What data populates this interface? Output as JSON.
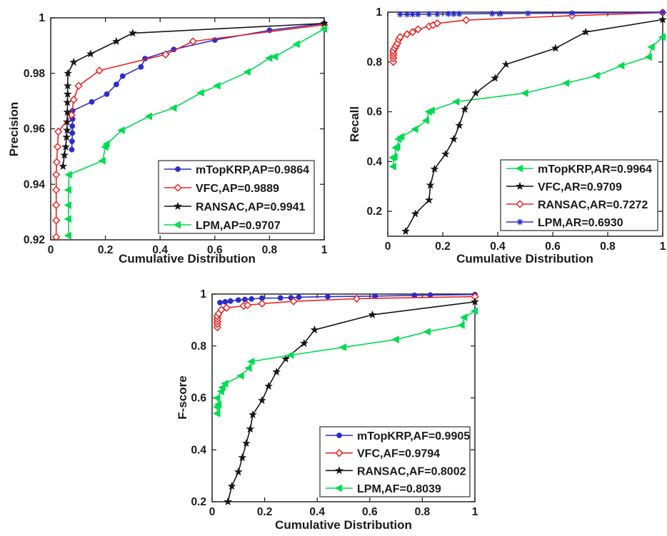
{
  "figure": {
    "background": "#ffffff",
    "palette": {
      "blue": "#2d2dcb",
      "red": "#ee2222",
      "black": "#161616",
      "green": "#00dc50"
    },
    "frame_color": "#262626",
    "text_color": "#1a1a1a",
    "legend_border_color": "#4d4d4d"
  },
  "chart_data": [
    {
      "name": "precision",
      "type": "line",
      "title": "",
      "xlabel": "Cumulative Distribution",
      "ylabel": "Precision",
      "xlim": [
        0,
        1
      ],
      "ylim": [
        0.92,
        1
      ],
      "xticks": [
        0,
        0.2,
        0.4,
        0.6,
        0.8,
        1
      ],
      "xtick_labels": [
        "0",
        "0.2",
        "0.4",
        "0.6",
        "0.8",
        "1"
      ],
      "yticks": [
        0.92,
        0.94,
        0.96,
        0.98,
        1
      ],
      "ytick_labels": [
        "0.92",
        "0.94",
        "0.96",
        "0.98",
        "1"
      ],
      "grid": false,
      "legend_position": "southeast",
      "series": [
        {
          "name": "mTopKRP",
          "label": "mTopKRP,AP=0.9864",
          "color": "#2d2dcb",
          "marker": "circle",
          "points": [
            [
              0.077,
              0.9525
            ],
            [
              0.078,
              0.9555
            ],
            [
              0.079,
              0.9585
            ],
            [
              0.079,
              0.961
            ],
            [
              0.08,
              0.9635
            ],
            [
              0.08,
              0.9665
            ],
            [
              0.15,
              0.9697
            ],
            [
              0.205,
              0.9725
            ],
            [
              0.24,
              0.976
            ],
            [
              0.263,
              0.979
            ],
            [
              0.33,
              0.9823
            ],
            [
              0.345,
              0.9853
            ],
            [
              0.45,
              0.9886
            ],
            [
              0.6,
              0.992
            ],
            [
              0.8,
              0.9955
            ],
            [
              1,
              0.998
            ]
          ]
        },
        {
          "name": "VFC",
          "label": "VFC,AP=0.9889",
          "color": "#ee2222",
          "marker": "diamond",
          "points": [
            [
              0.02,
              0.921
            ],
            [
              0.02,
              0.927
            ],
            [
              0.02,
              0.9325
            ],
            [
              0.02,
              0.938
            ],
            [
              0.02,
              0.9435
            ],
            [
              0.022,
              0.948
            ],
            [
              0.025,
              0.9535
            ],
            [
              0.028,
              0.959
            ],
            [
              0.076,
              0.965
            ],
            [
              0.084,
              0.9705
            ],
            [
              0.102,
              0.9755
            ],
            [
              0.178,
              0.981
            ],
            [
              0.42,
              0.9868
            ],
            [
              0.52,
              0.9915
            ],
            [
              1,
              0.9975
            ]
          ]
        },
        {
          "name": "RANSAC",
          "label": "RANSAC,AP=0.9941",
          "color": "#161616",
          "marker": "star",
          "points": [
            [
              0.045,
              0.9465
            ],
            [
              0.05,
              0.9505
            ],
            [
              0.055,
              0.9535
            ],
            [
              0.058,
              0.957
            ],
            [
              0.06,
              0.9595
            ],
            [
              0.06,
              0.9625
            ],
            [
              0.061,
              0.966
            ],
            [
              0.061,
              0.9695
            ],
            [
              0.062,
              0.9725
            ],
            [
              0.062,
              0.9755
            ],
            [
              0.063,
              0.98
            ],
            [
              0.084,
              0.984
            ],
            [
              0.146,
              0.987
            ],
            [
              0.24,
              0.9915
            ],
            [
              0.3,
              0.9945
            ],
            [
              1,
              0.998
            ]
          ]
        },
        {
          "name": "LPM",
          "label": "LPM,AP=0.9707",
          "color": "#00dc50",
          "marker": "triangle-left",
          "points": [
            [
              0.065,
              0.9215
            ],
            [
              0.065,
              0.9275
            ],
            [
              0.065,
              0.9325
            ],
            [
              0.065,
              0.938
            ],
            [
              0.067,
              0.9435
            ],
            [
              0.19,
              0.9485
            ],
            [
              0.2,
              0.9535
            ],
            [
              0.205,
              0.9545
            ],
            [
              0.26,
              0.9595
            ],
            [
              0.36,
              0.9645
            ],
            [
              0.45,
              0.9675
            ],
            [
              0.55,
              0.973
            ],
            [
              0.61,
              0.9755
            ],
            [
              0.72,
              0.9805
            ],
            [
              0.8,
              0.9855
            ],
            [
              0.82,
              0.986
            ],
            [
              0.9,
              0.9905
            ],
            [
              1,
              0.996
            ]
          ]
        }
      ]
    },
    {
      "name": "recall",
      "type": "line",
      "title": "",
      "xlabel": "Cumulative Distribution",
      "ylabel": "Recall",
      "xlim": [
        0,
        1
      ],
      "ylim": [
        0.1,
        1
      ],
      "xticks": [
        0,
        0.2,
        0.4,
        0.6,
        0.8,
        1
      ],
      "xtick_labels": [
        "0",
        "0.2",
        "0.4",
        "0.6",
        "0.8",
        "1"
      ],
      "yticks": [
        0.2,
        0.4,
        0.6,
        0.8,
        1
      ],
      "ytick_labels": [
        "0.2",
        "0.4",
        "0.6",
        "0.8",
        "1"
      ],
      "grid": false,
      "legend_position": "southeast",
      "series": [
        {
          "name": "mTopKRP",
          "label": "mTopKRP,AR=0.9964",
          "color": "#00dc50",
          "marker": "triangle-left",
          "points": [
            [
              0.02,
              0.38
            ],
            [
              0.02,
              0.415
            ],
            [
              0.025,
              0.42
            ],
            [
              0.03,
              0.455
            ],
            [
              0.035,
              0.46
            ],
            [
              0.04,
              0.49
            ],
            [
              0.05,
              0.5
            ],
            [
              0.1,
              0.53
            ],
            [
              0.14,
              0.565
            ],
            [
              0.15,
              0.6
            ],
            [
              0.16,
              0.605
            ],
            [
              0.25,
              0.64
            ],
            [
              0.5,
              0.675
            ],
            [
              0.65,
              0.715
            ],
            [
              0.76,
              0.745
            ],
            [
              0.85,
              0.785
            ],
            [
              0.95,
              0.82
            ],
            [
              0.96,
              0.86
            ],
            [
              1,
              0.9
            ]
          ]
        },
        {
          "name": "VFC",
          "label": "VFC,AR=0.9709",
          "color": "#161616",
          "marker": "star",
          "points": [
            [
              0.065,
              0.12
            ],
            [
              0.1,
              0.19
            ],
            [
              0.15,
              0.245
            ],
            [
              0.155,
              0.305
            ],
            [
              0.17,
              0.37
            ],
            [
              0.21,
              0.43
            ],
            [
              0.24,
              0.49
            ],
            [
              0.26,
              0.545
            ],
            [
              0.28,
              0.61
            ],
            [
              0.32,
              0.675
            ],
            [
              0.39,
              0.735
            ],
            [
              0.43,
              0.79
            ],
            [
              0.61,
              0.855
            ],
            [
              0.72,
              0.92
            ],
            [
              1,
              0.97
            ]
          ]
        },
        {
          "name": "RANSAC",
          "label": "RANSAC,AR=0.7272",
          "color": "#ee2222",
          "marker": "diamond",
          "points": [
            [
              0.02,
              0.8
            ],
            [
              0.02,
              0.815
            ],
            [
              0.02,
              0.825
            ],
            [
              0.02,
              0.835
            ],
            [
              0.02,
              0.845
            ],
            [
              0.025,
              0.855
            ],
            [
              0.03,
              0.865
            ],
            [
              0.035,
              0.875
            ],
            [
              0.04,
              0.89
            ],
            [
              0.045,
              0.9
            ],
            [
              0.07,
              0.911
            ],
            [
              0.09,
              0.92
            ],
            [
              0.11,
              0.931
            ],
            [
              0.15,
              0.943
            ],
            [
              0.165,
              0.948
            ],
            [
              0.18,
              0.955
            ],
            [
              0.285,
              0.968
            ],
            [
              0.67,
              0.986
            ],
            [
              1,
              0.998
            ]
          ]
        },
        {
          "name": "LPM",
          "label": "LPM,AR=0.6930",
          "color": "#2d2dcb",
          "marker": "asterisk",
          "points": [
            [
              0.045,
              0.991
            ],
            [
              0.07,
              0.991
            ],
            [
              0.09,
              0.991
            ],
            [
              0.11,
              0.991
            ],
            [
              0.15,
              0.992
            ],
            [
              0.18,
              0.992
            ],
            [
              0.22,
              0.993
            ],
            [
              0.24,
              0.993
            ],
            [
              0.26,
              0.993
            ],
            [
              0.38,
              0.994
            ],
            [
              0.41,
              0.994
            ],
            [
              0.51,
              0.995
            ],
            [
              0.67,
              0.996
            ],
            [
              1,
              0.999
            ]
          ]
        }
      ]
    },
    {
      "name": "fscore",
      "type": "line",
      "title": "",
      "xlabel": "Cumulative Distribution",
      "ylabel": "F-score",
      "xlim": [
        0,
        1
      ],
      "ylim": [
        0.2,
        1
      ],
      "xticks": [
        0,
        0.2,
        0.4,
        0.6,
        0.8,
        1
      ],
      "xtick_labels": [
        "0",
        "0.2",
        "0.4",
        "0.6",
        "0.8",
        "1"
      ],
      "yticks": [
        0.2,
        0.4,
        0.6,
        0.8,
        1
      ],
      "ytick_labels": [
        "0.2",
        "0.4",
        "0.6",
        "0.8",
        "1"
      ],
      "grid": false,
      "legend_position": "southeast",
      "series": [
        {
          "name": "mTopKRP",
          "label": "mTopKRP,AF=0.9905",
          "color": "#2d2dcb",
          "marker": "circle",
          "points": [
            [
              0.03,
              0.967
            ],
            [
              0.05,
              0.97
            ],
            [
              0.07,
              0.973
            ],
            [
              0.1,
              0.977
            ],
            [
              0.125,
              0.979
            ],
            [
              0.15,
              0.981
            ],
            [
              0.19,
              0.984
            ],
            [
              0.26,
              0.985
            ],
            [
              0.3,
              0.986
            ],
            [
              0.33,
              0.988
            ],
            [
              0.44,
              0.99
            ],
            [
              0.62,
              0.992
            ],
            [
              0.77,
              0.995
            ],
            [
              0.83,
              0.996
            ],
            [
              1,
              0.998
            ]
          ]
        },
        {
          "name": "VFC",
          "label": "VFC,AF=0.9794",
          "color": "#ee2222",
          "marker": "diamond",
          "points": [
            [
              0.02,
              0.872
            ],
            [
              0.02,
              0.885
            ],
            [
              0.02,
              0.895
            ],
            [
              0.02,
              0.905
            ],
            [
              0.02,
              0.915
            ],
            [
              0.025,
              0.925
            ],
            [
              0.035,
              0.939
            ],
            [
              0.055,
              0.947
            ],
            [
              0.12,
              0.9545
            ],
            [
              0.135,
              0.957
            ],
            [
              0.19,
              0.963
            ],
            [
              0.31,
              0.972
            ],
            [
              0.55,
              0.982
            ],
            [
              1,
              0.99
            ]
          ]
        },
        {
          "name": "RANSAC",
          "label": "RANSAC,AF=0.8002",
          "color": "#161616",
          "marker": "star",
          "points": [
            [
              0.06,
              0.2
            ],
            [
              0.075,
              0.26
            ],
            [
              0.1,
              0.315
            ],
            [
              0.115,
              0.37
            ],
            [
              0.13,
              0.425
            ],
            [
              0.145,
              0.48
            ],
            [
              0.155,
              0.535
            ],
            [
              0.19,
              0.59
            ],
            [
              0.215,
              0.645
            ],
            [
              0.245,
              0.7
            ],
            [
              0.28,
              0.75
            ],
            [
              0.35,
              0.81
            ],
            [
              0.39,
              0.862
            ],
            [
              0.61,
              0.92
            ],
            [
              1,
              0.97
            ]
          ]
        },
        {
          "name": "LPM",
          "label": "LPM,AF=0.8039",
          "color": "#00dc50",
          "marker": "triangle-left",
          "points": [
            [
              0.02,
              0.54
            ],
            [
              0.02,
              0.565
            ],
            [
              0.025,
              0.575
            ],
            [
              0.02,
              0.6
            ],
            [
              0.035,
              0.625
            ],
            [
              0.04,
              0.64
            ],
            [
              0.05,
              0.655
            ],
            [
              0.11,
              0.685
            ],
            [
              0.14,
              0.715
            ],
            [
              0.15,
              0.74
            ],
            [
              0.3,
              0.765
            ],
            [
              0.5,
              0.795
            ],
            [
              0.7,
              0.825
            ],
            [
              0.82,
              0.855
            ],
            [
              0.95,
              0.88
            ],
            [
              0.96,
              0.91
            ],
            [
              1,
              0.935
            ]
          ]
        }
      ]
    }
  ]
}
